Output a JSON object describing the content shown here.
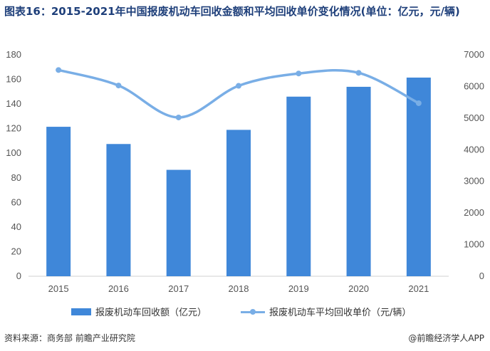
{
  "title": "图表16：2015-2021年中国报废机动车回收金额和平均回收单价变化情况(单位：亿元，元/辆)",
  "chart_data": {
    "type": "bar",
    "categories": [
      "2015",
      "2016",
      "2017",
      "2018",
      "2019",
      "2020",
      "2021"
    ],
    "series": [
      {
        "name": "报废机动车回收额（亿元）",
        "type": "bar",
        "axis": "left",
        "color": "#3f87d9",
        "values": [
          121.5,
          107.5,
          86.5,
          119,
          146,
          154,
          161.5
        ]
      },
      {
        "name": "报废机动车平均回收单价（元/辆）",
        "type": "line",
        "axis": "right",
        "color": "#79aee6",
        "values": [
          6520,
          6030,
          5020,
          6020,
          6410,
          6430,
          5470
        ]
      }
    ],
    "y_left": {
      "ticks": [
        "0",
        "20",
        "40",
        "60",
        "80",
        "100",
        "120",
        "140",
        "160",
        "180"
      ],
      "ylim": [
        0,
        180
      ]
    },
    "y_right": {
      "ticks": [
        "0",
        "1000",
        "2000",
        "3000",
        "4000",
        "5000",
        "6000",
        "7000"
      ],
      "ylim": [
        0,
        7000
      ]
    },
    "grid": false,
    "legend_position": "bottom"
  },
  "legend": {
    "bar_label": "报废机动车回收额（亿元）",
    "line_label": "报废机动车平均回收单价（元/辆）"
  },
  "footer": {
    "source": "资料来源：商务部 前瞻产业研究院",
    "brand": "@前瞻经济学人APP"
  }
}
